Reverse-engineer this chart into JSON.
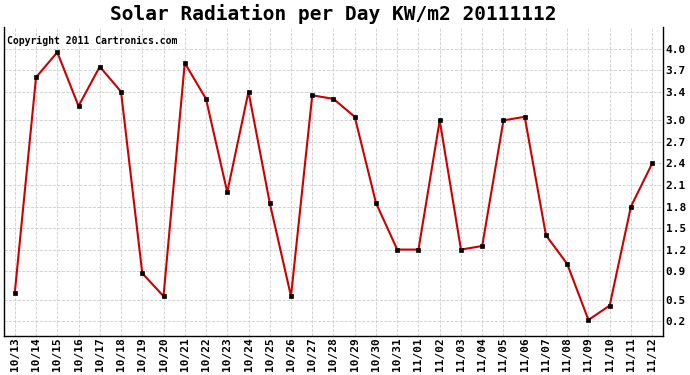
{
  "title": "Solar Radiation per Day KW/m2 20111112",
  "copyright_text": "Copyright 2011 Cartronics.com",
  "x_labels": [
    "10/13",
    "10/14",
    "10/15",
    "10/16",
    "10/17",
    "10/18",
    "10/19",
    "10/20",
    "10/21",
    "10/22",
    "10/23",
    "10/24",
    "10/25",
    "10/26",
    "10/27",
    "10/28",
    "10/29",
    "10/30",
    "10/31",
    "11/01",
    "11/02",
    "11/03",
    "11/04",
    "11/05",
    "11/06",
    "11/07",
    "11/08",
    "11/09",
    "11/10",
    "11/11",
    "11/12"
  ],
  "y_values": [
    0.6,
    3.6,
    3.95,
    3.2,
    3.75,
    3.4,
    0.87,
    0.55,
    3.8,
    3.3,
    2.0,
    3.4,
    1.85,
    0.55,
    3.35,
    3.3,
    3.05,
    1.85,
    1.2,
    1.2,
    3.0,
    1.2,
    1.25,
    3.0,
    3.05,
    1.4,
    1.0,
    0.22,
    0.42,
    1.8,
    2.4
  ],
  "line_color": "#cc0000",
  "marker_facecolor": "#000000",
  "background_color": "#ffffff",
  "grid_color": "#cccccc",
  "ylim_min": 0.0,
  "ylim_max": 4.3,
  "yticks": [
    0.2,
    0.5,
    0.9,
    1.2,
    1.5,
    1.8,
    2.1,
    2.4,
    2.7,
    3.0,
    3.4,
    3.7,
    4.0
  ],
  "title_fontsize": 14,
  "tick_fontsize": 8,
  "figwidth": 6.9,
  "figheight": 3.75,
  "dpi": 100
}
